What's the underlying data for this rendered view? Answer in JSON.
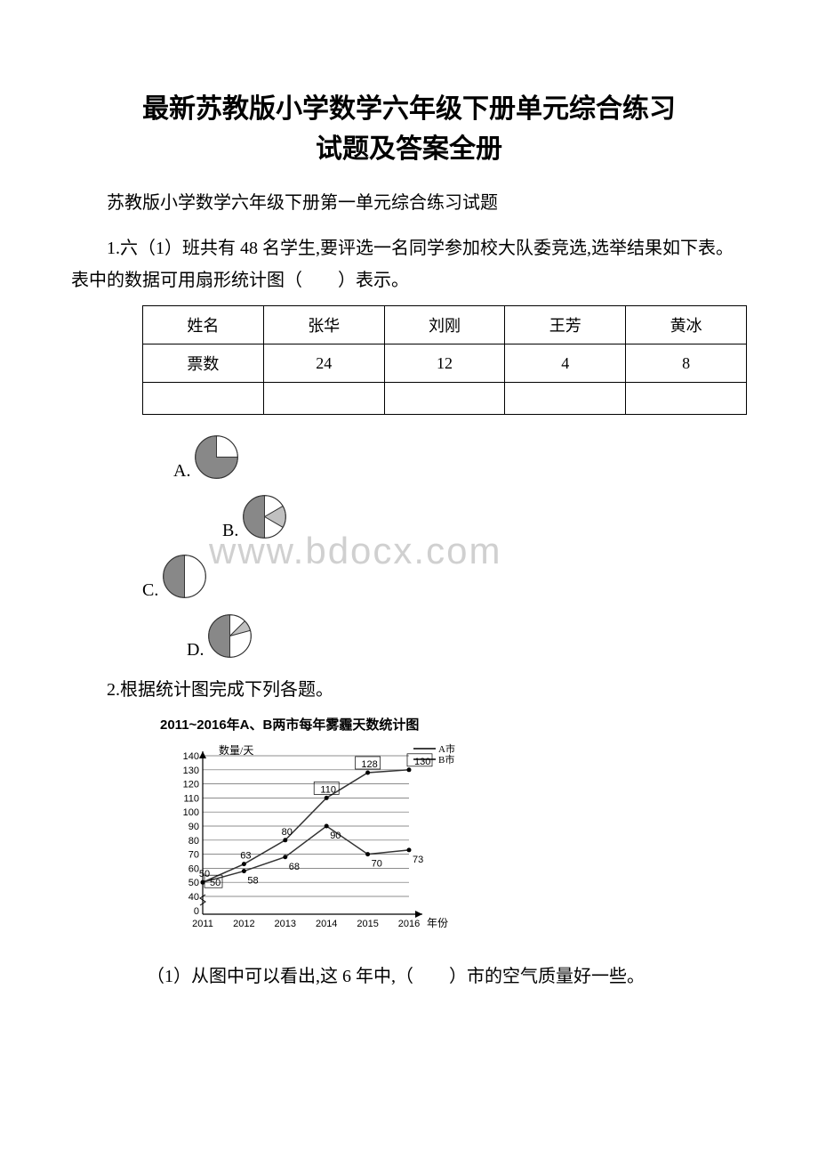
{
  "title_line1": "最新苏教版小学数学六年级下册单元综合练习",
  "title_line2": "试题及答案全册",
  "subtitle": "苏教版小学数学六年级下册第一单元综合练习试题",
  "q1_text": "1.六（1）班共有 48 名学生,要评选一名同学参加校大队委竞选,选举结果如下表。表中的数据可用扇形统计图（　　）表示。",
  "q2_text": "2.根据统计图完成下列各题。",
  "q2_sub1": "（1）从图中可以看出,这 6 年中,（　　）市的空气质量好一些。",
  "table": {
    "headers": [
      "姓名",
      "张华",
      "刘刚",
      "王芳",
      "黄冰"
    ],
    "row2": [
      "票数",
      "24",
      "12",
      "4",
      "8"
    ]
  },
  "options": {
    "A": "A.",
    "B": "B.",
    "C": "C.",
    "D": "D."
  },
  "pies": {
    "fill_dark": "#888888",
    "fill_light": "#ffffff",
    "stroke": "#333333",
    "A": [
      {
        "start": -90,
        "end": 0,
        "color": "#ffffff"
      },
      {
        "start": 0,
        "end": 270,
        "color": "#888888"
      }
    ],
    "B": [
      {
        "start": -90,
        "end": -30,
        "color": "#ffffff"
      },
      {
        "start": -30,
        "end": 30,
        "color": "#c0c0c0"
      },
      {
        "start": 30,
        "end": 90,
        "color": "#ffffff"
      },
      {
        "start": 90,
        "end": 270,
        "color": "#888888"
      }
    ],
    "C": [
      {
        "start": -90,
        "end": 90,
        "color": "#ffffff"
      },
      {
        "start": 90,
        "end": 270,
        "color": "#888888"
      }
    ],
    "D": [
      {
        "start": -90,
        "end": -45,
        "color": "#ffffff"
      },
      {
        "start": -45,
        "end": -15,
        "color": "#c0c0c0"
      },
      {
        "start": -15,
        "end": 90,
        "color": "#ffffff"
      },
      {
        "start": 90,
        "end": 270,
        "color": "#888888"
      }
    ]
  },
  "line_chart": {
    "title": "2011~2016年A、B两市每年雾霾天数统计图",
    "legend": {
      "A": "A市",
      "B": "B市"
    },
    "ylabel": "数量/天",
    "xlabel": "年份",
    "years": [
      "2011",
      "2012",
      "2013",
      "2014",
      "2015",
      "2016"
    ],
    "ylim": [
      0,
      140
    ],
    "yticks": [
      40,
      50,
      60,
      70,
      80,
      90,
      100,
      110,
      120,
      130,
      140
    ],
    "series_A": [
      50,
      63,
      80,
      110,
      128,
      130
    ],
    "series_B": [
      50,
      58,
      68,
      90,
      70,
      73
    ],
    "color_A": "#333333",
    "color_B": "#333333",
    "background": "#ffffff",
    "grid_color": "#666666",
    "label_fontsize": 11
  },
  "watermark": "www.bdocx.com"
}
